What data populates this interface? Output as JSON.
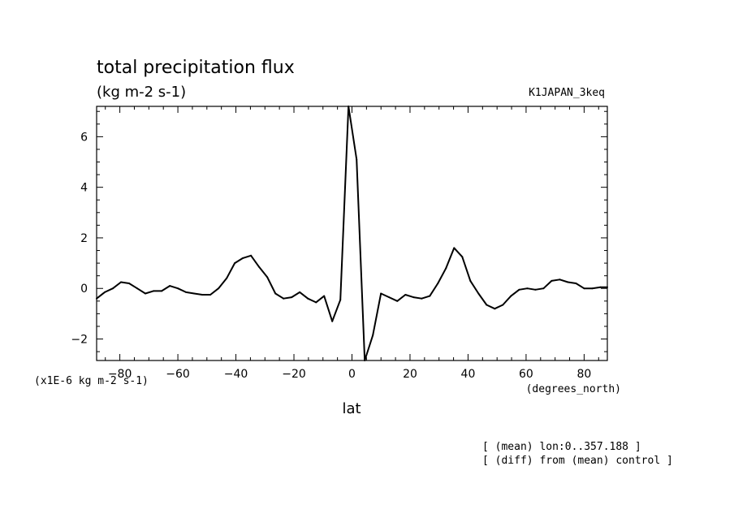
{
  "chart_data": {
    "type": "line",
    "title": "total precipitation flux",
    "units": "(kg m-2 s-1)",
    "experiment": "K1JAPAN_3keq",
    "scale_label": "(x1E-6 kg m-2 s-1)",
    "xlabel": "lat",
    "xunits": "(degrees_north)",
    "notes": [
      "[ (mean) lon:0..357.188 ]",
      "[ (diff) from (mean) control ]"
    ],
    "xlim": [
      -88,
      88
    ],
    "ylim": [
      -2.85,
      7.2
    ],
    "xticks": [
      -80,
      -60,
      -40,
      -20,
      0,
      20,
      40,
      60,
      80
    ],
    "yticks": [
      -2,
      0,
      2,
      4,
      6
    ],
    "grid": false,
    "series": [
      {
        "x": [
          -88,
          -85.2,
          -82.4,
          -79.6,
          -76.8,
          -74,
          -71.2,
          -68.4,
          -65.6,
          -62.8,
          -60,
          -57.2,
          -54.4,
          -51.6,
          -48.8,
          -46,
          -43.2,
          -40.4,
          -37.6,
          -34.8,
          -32,
          -29.2,
          -26.4,
          -23.6,
          -20.8,
          -18,
          -15.2,
          -12.4,
          -9.6,
          -6.8,
          -4,
          -1.2,
          1.6,
          4.4,
          7.2,
          10,
          12.8,
          15.6,
          18.4,
          21.2,
          24,
          26.8,
          29.6,
          32.4,
          35.2,
          38,
          40.8,
          43.6,
          46.4,
          49.2,
          52,
          54.8,
          57.6,
          60.4,
          63.2,
          66,
          68.8,
          71.6,
          74.4,
          77.2,
          80,
          82.8,
          85.6,
          88
        ],
        "y": [
          -0.4,
          -0.15,
          0,
          0.25,
          0.2,
          0,
          -0.2,
          -0.1,
          -0.1,
          0.1,
          0,
          -0.15,
          -0.2,
          -0.25,
          -0.25,
          0,
          0.4,
          1,
          1.2,
          1.3,
          0.85,
          0.45,
          -0.2,
          -0.4,
          -0.35,
          -0.15,
          -0.4,
          -0.55,
          -0.3,
          -1.3,
          -0.45,
          7.2,
          5.1,
          -2.85,
          -1.85,
          -0.2,
          -0.35,
          -0.5,
          -0.25,
          -0.35,
          -0.4,
          -0.3,
          0.2,
          0.8,
          1.6,
          1.25,
          0.3,
          -0.2,
          -0.65,
          -0.8,
          -0.65,
          -0.3,
          -0.05,
          0,
          -0.05,
          0,
          0.3,
          0.35,
          0.25,
          0.2,
          0,
          0,
          0.05,
          0.05
        ]
      }
    ]
  }
}
